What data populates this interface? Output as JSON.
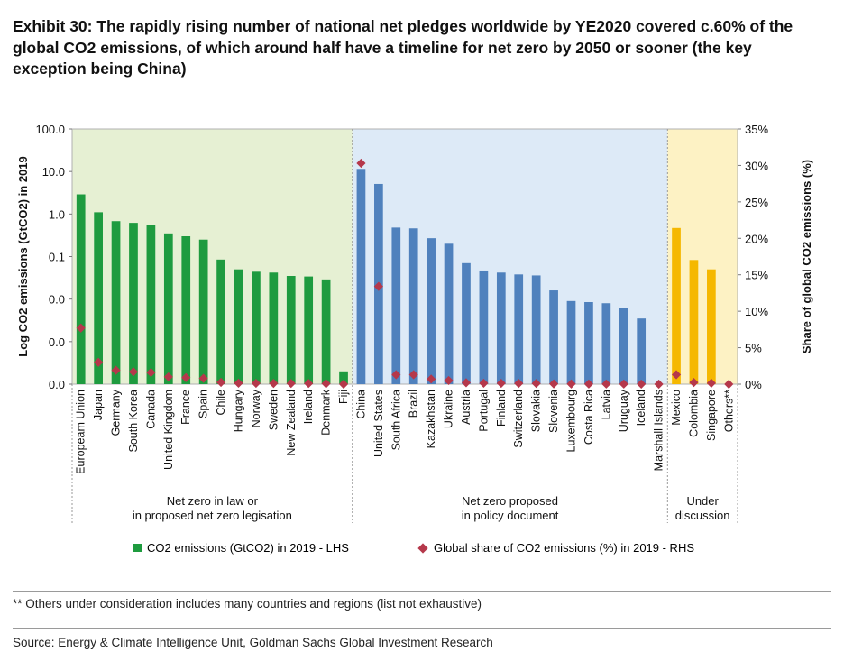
{
  "title": "Exhibit 30: The rapidly rising number of national net pledges worldwide by YE2020 covered c.60% of the global CO2 emissions, of which around half have a timeline for net zero by 2050 or sooner (the key exception being China)",
  "footnote": "** Others under consideration includes many countries and regions (list not exhaustive)",
  "source": "Source: Energy & Climate Intelligence Unit, Goldman Sachs Global Investment Research",
  "legend": {
    "bars": "CO2 emissions (GtCO2) in 2019 - LHS",
    "markers": "Global share of CO2 emissions (%) in 2019 - RHS"
  },
  "colors": {
    "green_bar": "#1e9b3f",
    "blue_bar": "#4f81bd",
    "yellow_bar": "#f5b800",
    "marker": "#b5384b",
    "green_bg": "#e6f0d3",
    "blue_bg": "#ddeaf7",
    "yellow_bg": "#fdf2c4"
  },
  "chart_data": {
    "type": "bar",
    "y_left": {
      "label": "Log CO2 emissions (GtCO2) in 2019",
      "scale": "log",
      "range": [
        0.0001,
        100
      ],
      "tick_values": [
        0.0001,
        0.001,
        0.01,
        0.1,
        1,
        10,
        100
      ],
      "tick_labels": [
        "0.0",
        "0.0",
        "0.0",
        "0.1",
        "1.0",
        "10.0",
        "100.0"
      ]
    },
    "y_right": {
      "label": "Share of global CO2 emissions (%)",
      "range": [
        0,
        35
      ],
      "tick_values": [
        0,
        5,
        10,
        15,
        20,
        25,
        30,
        35
      ],
      "tick_labels": [
        "0%",
        "5%",
        "10%",
        "15%",
        "20%",
        "25%",
        "30%",
        "35%"
      ]
    },
    "groups": [
      {
        "label_lines": [
          "Net zero in law or",
          "in proposed net zero legisation"
        ],
        "color": "green",
        "categories": [
          "Europeam Union",
          "Japan",
          "Germany",
          "South Korea",
          "Canada",
          "United Kingdom",
          "France",
          "Spain",
          "Chile",
          "Hungary",
          "Norway",
          "Sweden",
          "New Zealand",
          "Ireland",
          "Denmark",
          "Fiji"
        ],
        "emissions": [
          2.9,
          1.1,
          0.68,
          0.62,
          0.55,
          0.35,
          0.3,
          0.25,
          0.085,
          0.05,
          0.044,
          0.042,
          0.035,
          0.034,
          0.029,
          0.0002
        ],
        "share": [
          7.7,
          3.0,
          1.9,
          1.7,
          1.6,
          1.0,
          0.9,
          0.8,
          0.25,
          0.14,
          0.12,
          0.11,
          0.1,
          0.1,
          0.08,
          0.0
        ]
      },
      {
        "label_lines": [
          "Net zero proposed",
          "in policy document"
        ],
        "color": "blue",
        "categories": [
          "China",
          "United States",
          "South Africa",
          "Brazil",
          "Kazakhstan",
          "Ukraine",
          "Austria",
          "Portugal",
          "Finland",
          "Switzerland",
          "Slovakia",
          "Slovenia",
          "Luxembourg",
          "Costa Rica",
          "Latvia",
          "Uruguay",
          "Iceland",
          "Marshall Islands"
        ],
        "emissions": [
          11.5,
          5.1,
          0.48,
          0.46,
          0.27,
          0.2,
          0.07,
          0.047,
          0.042,
          0.038,
          0.036,
          0.016,
          0.009,
          0.0085,
          0.008,
          0.0062,
          0.0035,
          0.0001
        ],
        "share": [
          30.3,
          13.4,
          1.3,
          1.3,
          0.7,
          0.5,
          0.2,
          0.13,
          0.12,
          0.11,
          0.1,
          0.04,
          0.03,
          0.02,
          0.02,
          0.02,
          0.01,
          0.0
        ]
      },
      {
        "label_lines": [
          "Under",
          "discussion"
        ],
        "color": "yellow",
        "categories": [
          "Mexico",
          "Colombia",
          "Singapore",
          "Others**"
        ],
        "emissions": [
          0.47,
          0.083,
          0.05,
          null
        ],
        "share": [
          1.3,
          0.23,
          0.14,
          0.0
        ]
      }
    ]
  }
}
